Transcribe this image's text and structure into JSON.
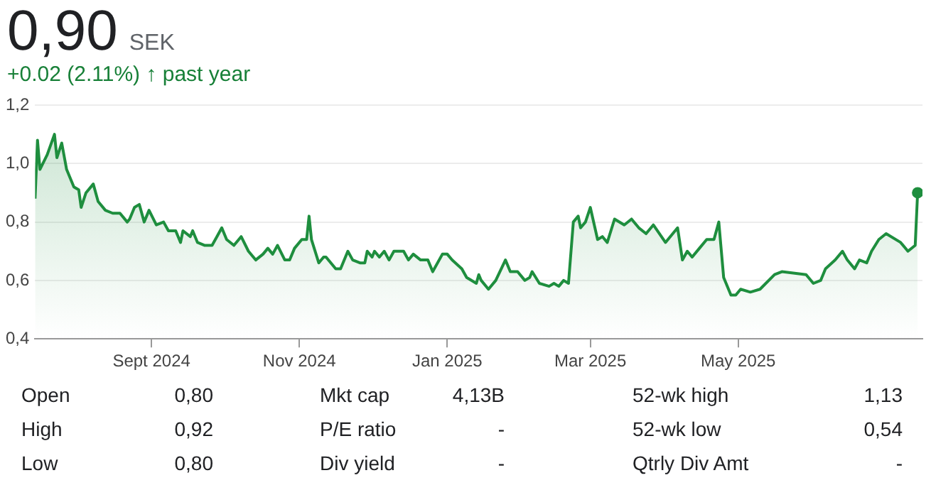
{
  "chart_data": {
    "type": "area",
    "title": "0,90",
    "subtitle": "SEK",
    "annotations": [
      "+0.02 (2.11%) ↑ past year",
      "Open",
      "0,80",
      "Mkt cap",
      "4,13B",
      "52-wk high",
      "1,13",
      "High",
      "0,92",
      "P/E ratio",
      "-",
      "52-wk low",
      "0,54",
      "Low",
      "0,80",
      "Div yield",
      "-",
      "Qtrly Div Amt",
      "-"
    ],
    "x": [
      "2024-07-15",
      "2024-07-16",
      "2024-07-17",
      "2024-07-20",
      "2024-07-23",
      "2024-07-24",
      "2024-07-26",
      "2024-07-28",
      "2024-07-31",
      "2024-08-02",
      "2024-08-03",
      "2024-08-05",
      "2024-08-08",
      "2024-08-10",
      "2024-08-13",
      "2024-08-16",
      "2024-08-19",
      "2024-08-22",
      "2024-08-23",
      "2024-08-25",
      "2024-08-27",
      "2024-08-29",
      "2024-08-31",
      "2024-09-03",
      "2024-09-06",
      "2024-09-08",
      "2024-09-11",
      "2024-09-13",
      "2024-09-14",
      "2024-09-17",
      "2024-09-18",
      "2024-09-20",
      "2024-09-23",
      "2024-09-26",
      "2024-09-28",
      "2024-09-30",
      "2024-10-02",
      "2024-10-05",
      "2024-10-08",
      "2024-10-11",
      "2024-10-14",
      "2024-10-17",
      "2024-10-19",
      "2024-10-21",
      "2024-10-23",
      "2024-10-26",
      "2024-10-28",
      "2024-10-30",
      "2024-11-02",
      "2024-11-04",
      "2024-11-05",
      "2024-11-06",
      "2024-11-09",
      "2024-11-11",
      "2024-11-12",
      "2024-11-16",
      "2024-11-18",
      "2024-11-21",
      "2024-11-23",
      "2024-11-26",
      "2024-11-28",
      "2024-11-29",
      "2024-12-01",
      "2024-12-02",
      "2024-12-04",
      "2024-12-06",
      "2024-12-08",
      "2024-12-10",
      "2024-12-14",
      "2024-12-16",
      "2024-12-18",
      "2024-12-21",
      "2024-12-24",
      "2024-12-26",
      "2024-12-30",
      "2025-01-01",
      "2025-01-03",
      "2025-01-07",
      "2025-01-09",
      "2025-01-13",
      "2025-01-14",
      "2025-01-15",
      "2025-01-18",
      "2025-01-21",
      "2025-01-25",
      "2025-01-27",
      "2025-01-30",
      "2025-02-02",
      "2025-02-04",
      "2025-02-05",
      "2025-02-08",
      "2025-02-12",
      "2025-02-14",
      "2025-02-16",
      "2025-02-18",
      "2025-02-20",
      "2025-02-22",
      "2025-02-24",
      "2025-02-25",
      "2025-02-27",
      "2025-03-01",
      "2025-03-04",
      "2025-03-06",
      "2025-03-08",
      "2025-03-11",
      "2025-03-15",
      "2025-03-18",
      "2025-03-21",
      "2025-03-24",
      "2025-03-27",
      "2025-04-01",
      "2025-04-06",
      "2025-04-08",
      "2025-04-10",
      "2025-04-12",
      "2025-04-15",
      "2025-04-18",
      "2025-04-21",
      "2025-04-23",
      "2025-04-25",
      "2025-04-28",
      "2025-04-30",
      "2025-05-02",
      "2025-05-06",
      "2025-05-10",
      "2025-05-16",
      "2025-05-19",
      "2025-05-29",
      "2025-06-01",
      "2025-06-04",
      "2025-06-06",
      "2025-06-10",
      "2025-06-13",
      "2025-06-15",
      "2025-06-18",
      "2025-06-20",
      "2025-06-23",
      "2025-06-25",
      "2025-06-28",
      "2025-07-01",
      "2025-07-07",
      "2025-07-10",
      "2025-07-13",
      "2025-07-14"
    ],
    "values": [
      0.88,
      1.08,
      0.98,
      1.03,
      1.1,
      1.02,
      1.07,
      0.98,
      0.92,
      0.91,
      0.85,
      0.9,
      0.93,
      0.87,
      0.84,
      0.83,
      0.83,
      0.8,
      0.81,
      0.85,
      0.86,
      0.8,
      0.84,
      0.79,
      0.8,
      0.77,
      0.77,
      0.73,
      0.77,
      0.75,
      0.77,
      0.73,
      0.72,
      0.72,
      0.75,
      0.78,
      0.74,
      0.72,
      0.75,
      0.7,
      0.67,
      0.69,
      0.71,
      0.69,
      0.72,
      0.67,
      0.67,
      0.71,
      0.74,
      0.74,
      0.82,
      0.74,
      0.66,
      0.68,
      0.68,
      0.64,
      0.64,
      0.7,
      0.67,
      0.66,
      0.66,
      0.7,
      0.68,
      0.7,
      0.68,
      0.7,
      0.67,
      0.7,
      0.7,
      0.67,
      0.69,
      0.67,
      0.67,
      0.63,
      0.69,
      0.69,
      0.67,
      0.64,
      0.61,
      0.59,
      0.62,
      0.6,
      0.57,
      0.6,
      0.67,
      0.63,
      0.63,
      0.6,
      0.61,
      0.63,
      0.59,
      0.58,
      0.59,
      0.58,
      0.6,
      0.59,
      0.8,
      0.82,
      0.78,
      0.8,
      0.85,
      0.74,
      0.75,
      0.73,
      0.81,
      0.79,
      0.81,
      0.78,
      0.76,
      0.79,
      0.73,
      0.78,
      0.67,
      0.7,
      0.68,
      0.71,
      0.74,
      0.74,
      0.8,
      0.61,
      0.55,
      0.55,
      0.57,
      0.56,
      0.57,
      0.62,
      0.63,
      0.62,
      0.59,
      0.6,
      0.64,
      0.67,
      0.7,
      0.67,
      0.64,
      0.67,
      0.66,
      0.7,
      0.74,
      0.76,
      0.73,
      0.7,
      0.72,
      0.9
    ],
    "color": "#1e8e3e",
    "xlim": [
      "2024-07-15",
      "2025-07-16"
    ],
    "xticks": [
      {
        "value": "2024-09-01",
        "label": "Sept 2024"
      },
      {
        "value": "2024-11-01",
        "label": "Nov 2024"
      },
      {
        "value": "2025-01-01",
        "label": "Jan 2025"
      },
      {
        "value": "2025-03-01",
        "label": "Mar 2025"
      },
      {
        "value": "2025-05-01",
        "label": "May 2025"
      }
    ],
    "ylim": [
      0.4,
      1.2
    ],
    "yticks": [
      {
        "value": 0.4,
        "label": "0,4"
      },
      {
        "value": 0.6,
        "label": "0,6"
      },
      {
        "value": 0.8,
        "label": "0,8"
      },
      {
        "value": 1.0,
        "label": "1,0"
      },
      {
        "value": 1.2,
        "label": "1,2"
      }
    ],
    "grid": "y"
  }
}
